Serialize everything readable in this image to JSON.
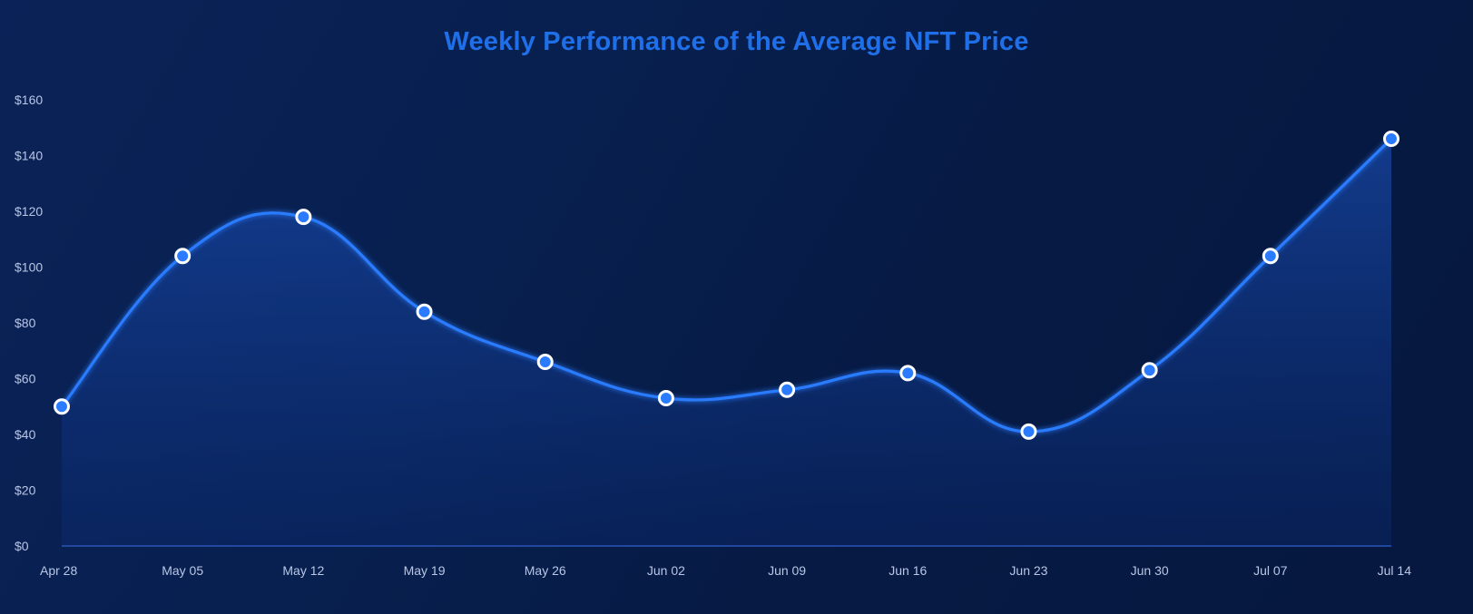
{
  "chart_data": {
    "type": "line",
    "title": "Weekly Performance of the Average NFT Price",
    "xlabel": "",
    "ylabel": "",
    "categories": [
      "Apr 28",
      "May 05",
      "May 12",
      "May 19",
      "May 26",
      "Jun 02",
      "Jun 09",
      "Jun 16",
      "Jun 23",
      "Jun 30",
      "Jul 07",
      "Jul 14"
    ],
    "series": [
      {
        "values": [
          50,
          104,
          118,
          84,
          66,
          53,
          56,
          62,
          41,
          63,
          104,
          146
        ]
      }
    ],
    "ylim": [
      0,
      160
    ],
    "yticks": [
      0,
      20,
      40,
      60,
      80,
      100,
      120,
      140,
      160
    ],
    "ytick_labels": [
      "$0",
      "$20",
      "$40",
      "$60",
      "$80",
      "$100",
      "$120",
      "$140",
      "$160"
    ],
    "grid": false,
    "smooth": true,
    "area_fill": true,
    "line_color": "#2a7bff",
    "marker_fill": "#2a7bff",
    "marker_stroke": "#ffffff",
    "title_color": "#1f6fe8"
  }
}
